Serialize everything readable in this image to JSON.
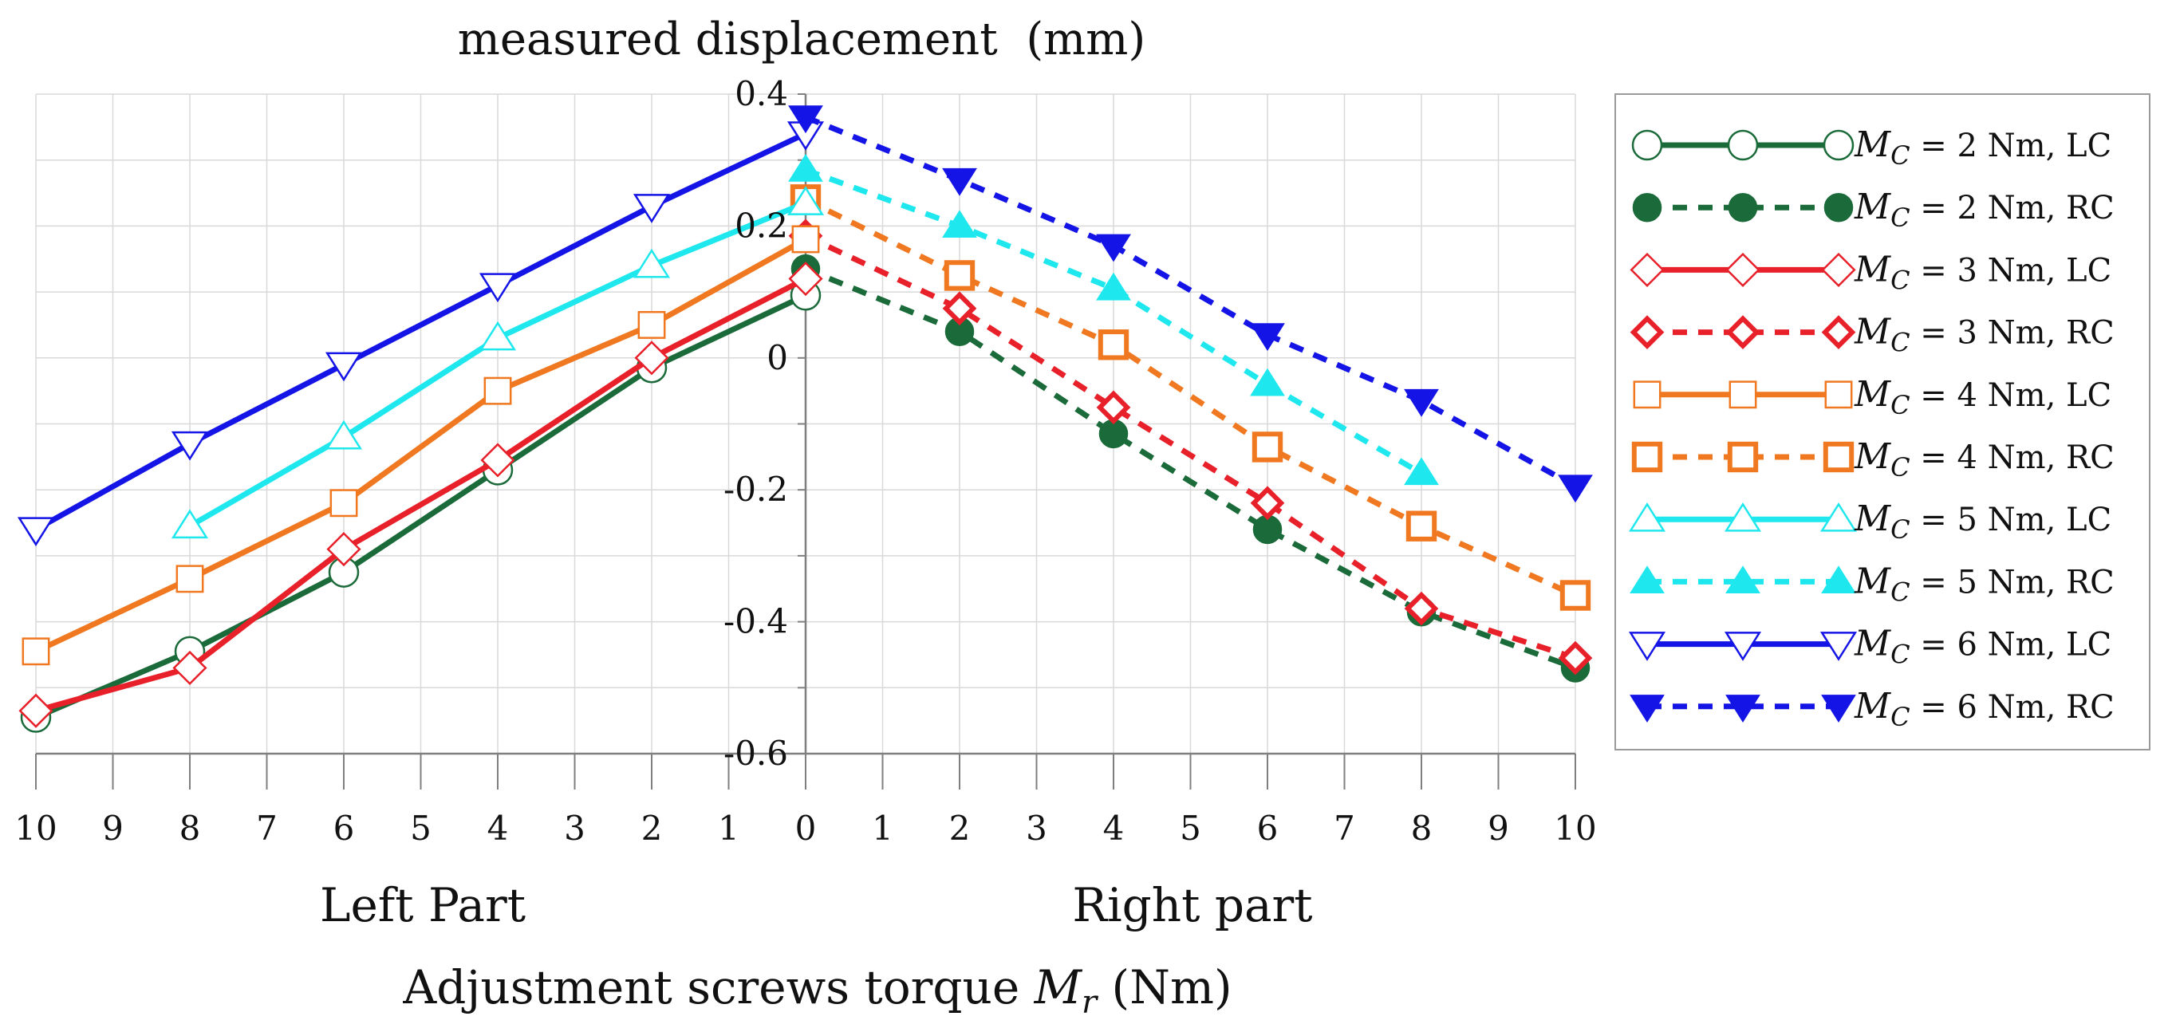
{
  "chart_data": {
    "type": "line",
    "title": "measured displacement  (mm)",
    "xlabel": {
      "prefix": "Adjustment screws torque ",
      "symbol": "M",
      "subscript": "r",
      "suffix": " (Nm)"
    },
    "part_labels": {
      "left": "Left Part",
      "right": "Right part"
    },
    "x_range": [
      -10,
      10
    ],
    "ylim": [
      -0.6,
      0.4
    ],
    "x_ticks": [
      -10,
      -9,
      -8,
      -7,
      -6,
      -5,
      -4,
      -3,
      -2,
      -1,
      0,
      1,
      2,
      3,
      4,
      5,
      6,
      7,
      8,
      9,
      10
    ],
    "x_tick_labels": [
      "10",
      "9",
      "8",
      "7",
      "6",
      "5",
      "4",
      "3",
      "2",
      "1",
      "0",
      "1",
      "2",
      "3",
      "4",
      "5",
      "6",
      "7",
      "8",
      "9",
      "10"
    ],
    "y_ticks": [
      0.4,
      0.2,
      0,
      -0.2,
      -0.4,
      -0.6
    ],
    "y_tick_labels": [
      "0.4",
      "0.2",
      "0",
      "-0.2",
      "-0.4",
      "-0.6"
    ],
    "grid": true,
    "legend_position": "right",
    "series": [
      {
        "name": "= 2 Nm, LC",
        "symbol": "M",
        "subscript": "C",
        "color": "#1b6b3a",
        "dash": false,
        "marker": "circle-open",
        "x": [
          -10,
          -8,
          -6,
          -4,
          -2,
          0
        ],
        "y": [
          -0.545,
          -0.445,
          -0.325,
          -0.17,
          -0.015,
          0.095
        ]
      },
      {
        "name": "= 2 Nm, RC",
        "symbol": "M",
        "subscript": "C",
        "color": "#1b6b3a",
        "dash": true,
        "marker": "circle-filled",
        "x": [
          0,
          2,
          4,
          6,
          8,
          10
        ],
        "y": [
          0.135,
          0.04,
          -0.115,
          -0.26,
          -0.385,
          -0.47
        ]
      },
      {
        "name": "= 3 Nm, LC",
        "symbol": "M",
        "subscript": "C",
        "color": "#e8202a",
        "dash": false,
        "marker": "diamond-open",
        "x": [
          -10,
          -8,
          -6,
          -4,
          -2,
          0
        ],
        "y": [
          -0.535,
          -0.47,
          -0.29,
          -0.155,
          0.0,
          0.12
        ]
      },
      {
        "name": "= 3 Nm, RC",
        "symbol": "M",
        "subscript": "C",
        "color": "#e8202a",
        "dash": true,
        "marker": "diamond-thick",
        "x": [
          0,
          2,
          4,
          6,
          8,
          10
        ],
        "y": [
          0.185,
          0.075,
          -0.075,
          -0.22,
          -0.38,
          -0.455
        ]
      },
      {
        "name": "= 4 Nm, LC",
        "symbol": "M",
        "subscript": "C",
        "color": "#f07820",
        "dash": false,
        "marker": "square-open",
        "x": [
          -10,
          -8,
          -6,
          -4,
          -2,
          0
        ],
        "y": [
          -0.445,
          -0.335,
          -0.22,
          -0.05,
          0.05,
          0.18
        ]
      },
      {
        "name": "= 4 Nm, RC",
        "symbol": "M",
        "subscript": "C",
        "color": "#f07820",
        "dash": true,
        "marker": "square-thick",
        "x": [
          0,
          2,
          4,
          6,
          8,
          10
        ],
        "y": [
          0.24,
          0.125,
          0.02,
          -0.135,
          -0.255,
          -0.36
        ]
      },
      {
        "name": "= 5 Nm, LC",
        "symbol": "M",
        "subscript": "C",
        "color": "#1ee8ee",
        "dash": false,
        "marker": "triangle-up-open",
        "x": [
          -8,
          -6,
          -4,
          -2,
          0
        ],
        "y": [
          -0.255,
          -0.12,
          0.03,
          0.14,
          0.235
        ]
      },
      {
        "name": "= 5 Nm, RC",
        "symbol": "M",
        "subscript": "C",
        "color": "#1ee8ee",
        "dash": true,
        "marker": "triangle-up-filled",
        "x": [
          0,
          2,
          4,
          6,
          8
        ],
        "y": [
          0.285,
          0.2,
          0.105,
          -0.04,
          -0.175
        ]
      },
      {
        "name": "= 6 Nm, LC",
        "symbol": "M",
        "subscript": "C",
        "color": "#1414e6",
        "dash": false,
        "marker": "triangle-down-open",
        "x": [
          -10,
          -8,
          -6,
          -4,
          -2,
          0
        ],
        "y": [
          -0.26,
          -0.13,
          -0.01,
          0.11,
          0.23,
          0.34
        ]
      },
      {
        "name": "= 6 Nm, RC",
        "symbol": "M",
        "subscript": "C",
        "color": "#1414e6",
        "dash": true,
        "marker": "triangle-down-filled",
        "x": [
          0,
          2,
          4,
          6,
          8,
          10
        ],
        "y": [
          0.365,
          0.27,
          0.17,
          0.035,
          -0.065,
          -0.195
        ]
      }
    ]
  }
}
